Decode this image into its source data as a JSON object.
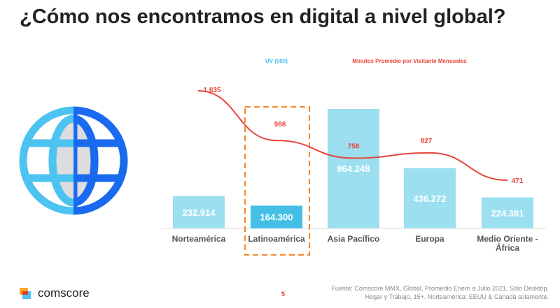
{
  "title": "¿Cómo nos encontramos en digital a nivel global?",
  "chart_data": {
    "type": "bar",
    "categories": [
      "Norteamérica",
      "Latinoamérica",
      "Asia Pacífico",
      "Europa",
      "Medio Oriente - África"
    ],
    "category_labels": [
      [
        "Norteamérica"
      ],
      [
        "Latinoamérica"
      ],
      [
        "Asia Pacífico"
      ],
      [
        "Europa"
      ],
      [
        "Medio Oriente -",
        "África"
      ]
    ],
    "series": [
      {
        "name": "UV (000)",
        "type": "bar",
        "values": [
          232914,
          164300,
          864248,
          436272,
          224381
        ],
        "labels": [
          "232.914",
          "164.300",
          "864.248",
          "436.272",
          "224.381"
        ],
        "color": "#9bdff0",
        "highlight_color": "#45bfe6"
      },
      {
        "name": "Minutos Promedio por Visitante Mensuales",
        "type": "line",
        "values": [
          1635,
          988,
          758,
          827,
          471
        ],
        "labels": [
          "1.635",
          "988",
          "758",
          "827",
          "471"
        ],
        "color": "#e8453c"
      }
    ],
    "highlighted_category": "Latinoamérica",
    "highlight_color": "#f5872d"
  },
  "footer": {
    "brand": "comscore",
    "page": "5",
    "source_line1": "Fuente: Comscore MMX, Global, Promedio Enero a Julio 2021, Sólo Desktop,",
    "source_line2": "Hogar y Trabajo, 15+. Norteamérica: EEUU & Canadá solamente."
  }
}
